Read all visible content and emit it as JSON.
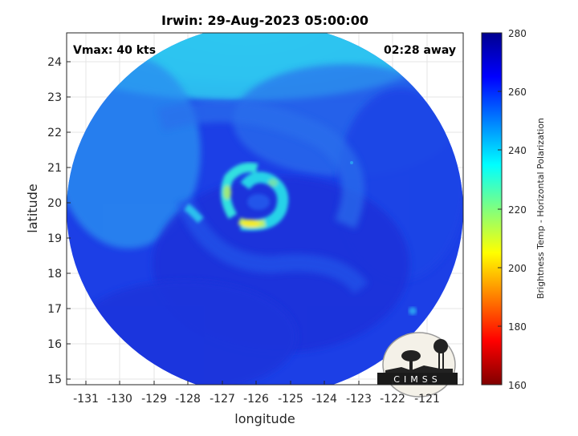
{
  "title": "Irwin: 29-Aug-2023 05:00:00",
  "vmax_label": "Vmax: 40 kts",
  "time_label": "02:28 away",
  "xlabel": "longitude",
  "ylabel": "latitude",
  "x_ticks": [
    "-131",
    "-130",
    "-129",
    "-128",
    "-127",
    "-126",
    "-125",
    "-124",
    "-123",
    "-122",
    "-121"
  ],
  "y_ticks": [
    "24",
    "23",
    "22",
    "21",
    "20",
    "19",
    "18",
    "17",
    "16",
    "15"
  ],
  "colorbar": {
    "label": "Brightness Temp - Horizontal Polarization",
    "ticks": [
      "280",
      "260",
      "240",
      "220",
      "200",
      "180",
      "160"
    ],
    "range": [
      160,
      280
    ],
    "colormap": "jet"
  },
  "logo_text": "CIMSS",
  "colors": {
    "background_ring": "#1a3fe0",
    "swath_outer": "#27b6f0",
    "eyewall": "#f4ef2a"
  }
}
